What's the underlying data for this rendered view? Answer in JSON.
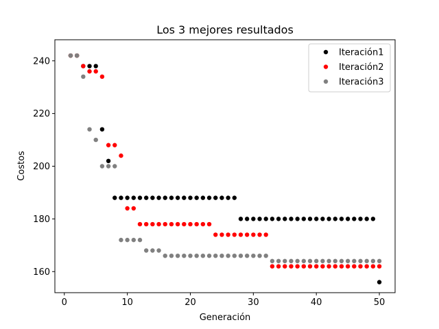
{
  "chart_data": {
    "type": "scatter",
    "title": "Los 3 mejores resultados",
    "xlabel": "Generación",
    "ylabel": "Costos",
    "xlim": [
      -1.5,
      52.5
    ],
    "ylim": [
      152,
      248
    ],
    "xticks": [
      0,
      10,
      20,
      30,
      40,
      50
    ],
    "yticks": [
      160,
      180,
      200,
      220,
      240
    ],
    "grid": false,
    "legend_position": "top-right",
    "series": [
      {
        "name": "Iteración1",
        "color": "#000000",
        "x": [
          1,
          2,
          3,
          4,
          5,
          6,
          7,
          8,
          9,
          10,
          11,
          12,
          13,
          14,
          15,
          16,
          17,
          18,
          19,
          20,
          21,
          22,
          23,
          24,
          25,
          26,
          27,
          28,
          29,
          30,
          31,
          32,
          33,
          34,
          35,
          36,
          37,
          38,
          39,
          40,
          41,
          42,
          43,
          44,
          45,
          46,
          47,
          48,
          49,
          50
        ],
        "y": [
          242,
          242,
          238,
          238,
          238,
          214,
          202,
          188,
          188,
          188,
          188,
          188,
          188,
          188,
          188,
          188,
          188,
          188,
          188,
          188,
          188,
          188,
          188,
          188,
          188,
          188,
          188,
          180,
          180,
          180,
          180,
          180,
          180,
          180,
          180,
          180,
          180,
          180,
          180,
          180,
          180,
          180,
          180,
          180,
          180,
          180,
          180,
          180,
          180,
          156
        ]
      },
      {
        "name": "Iteración2",
        "color": "#ff0000",
        "x": [
          1,
          2,
          3,
          4,
          5,
          6,
          7,
          8,
          9,
          10,
          11,
          12,
          13,
          14,
          15,
          16,
          17,
          18,
          19,
          20,
          21,
          22,
          23,
          24,
          25,
          26,
          27,
          28,
          29,
          30,
          31,
          32,
          33,
          34,
          35,
          36,
          37,
          38,
          39,
          40,
          41,
          42,
          43,
          44,
          45,
          46,
          47,
          48,
          49,
          50
        ],
        "y": [
          242,
          242,
          238,
          236,
          236,
          234,
          208,
          208,
          204,
          184,
          184,
          178,
          178,
          178,
          178,
          178,
          178,
          178,
          178,
          178,
          178,
          178,
          178,
          174,
          174,
          174,
          174,
          174,
          174,
          174,
          174,
          174,
          162,
          162,
          162,
          162,
          162,
          162,
          162,
          162,
          162,
          162,
          162,
          162,
          162,
          162,
          162,
          162,
          162,
          162
        ]
      },
      {
        "name": "Iteración3",
        "color": "#808080",
        "x": [
          1,
          2,
          3,
          4,
          5,
          6,
          7,
          8,
          9,
          10,
          11,
          12,
          13,
          14,
          15,
          16,
          17,
          18,
          19,
          20,
          21,
          22,
          23,
          24,
          25,
          26,
          27,
          28,
          29,
          30,
          31,
          32,
          33,
          34,
          35,
          36,
          37,
          38,
          39,
          40,
          41,
          42,
          43,
          44,
          45,
          46,
          47,
          48,
          49,
          50
        ],
        "y": [
          242,
          242,
          234,
          214,
          210,
          200,
          200,
          200,
          172,
          172,
          172,
          172,
          168,
          168,
          168,
          166,
          166,
          166,
          166,
          166,
          166,
          166,
          166,
          166,
          166,
          166,
          166,
          166,
          166,
          166,
          166,
          166,
          164,
          164,
          164,
          164,
          164,
          164,
          164,
          164,
          164,
          164,
          164,
          164,
          164,
          164,
          164,
          164,
          164,
          164
        ]
      }
    ]
  }
}
